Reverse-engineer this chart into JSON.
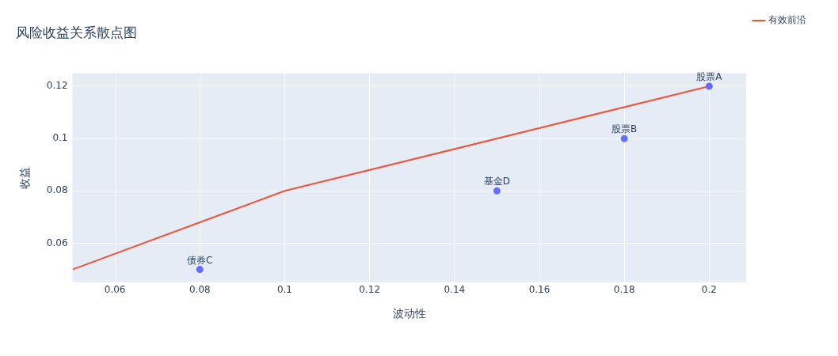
{
  "chart_data": {
    "type": "scatter",
    "title": "风险收益关系散点图",
    "xlabel": "波动性",
    "ylabel": "收益",
    "series": [
      {
        "type": "scatter",
        "color": "#636efa",
        "marker": "circle",
        "x": [
          0.2,
          0.18,
          0.08,
          0.15
        ],
        "values": [
          0.12,
          0.1,
          0.05,
          0.08
        ]
      },
      {
        "type": "line",
        "name": "有效前沿",
        "color": "#ef553b",
        "marker": "none",
        "line_style": "solid",
        "x": [
          0.05,
          0.1,
          0.2
        ],
        "values": [
          0.05,
          0.08,
          0.12
        ]
      }
    ],
    "annotations": [
      {
        "text": "股票A",
        "x": 0.2,
        "y": 0.12
      },
      {
        "text": "股票B",
        "x": 0.18,
        "y": 0.1
      },
      {
        "text": "债券C",
        "x": 0.08,
        "y": 0.05
      },
      {
        "text": "基金D",
        "x": 0.15,
        "y": 0.08
      }
    ],
    "xlim": [
      0.05,
      0.2087
    ],
    "ylim": [
      0.0451,
      0.125
    ],
    "xticks": [
      0.06,
      0.08,
      0.1,
      0.12,
      0.14,
      0.16,
      0.18,
      0.2
    ],
    "yticks": [
      0.06,
      0.08,
      0.1,
      0.12
    ],
    "grid": true,
    "legend": "top right"
  }
}
